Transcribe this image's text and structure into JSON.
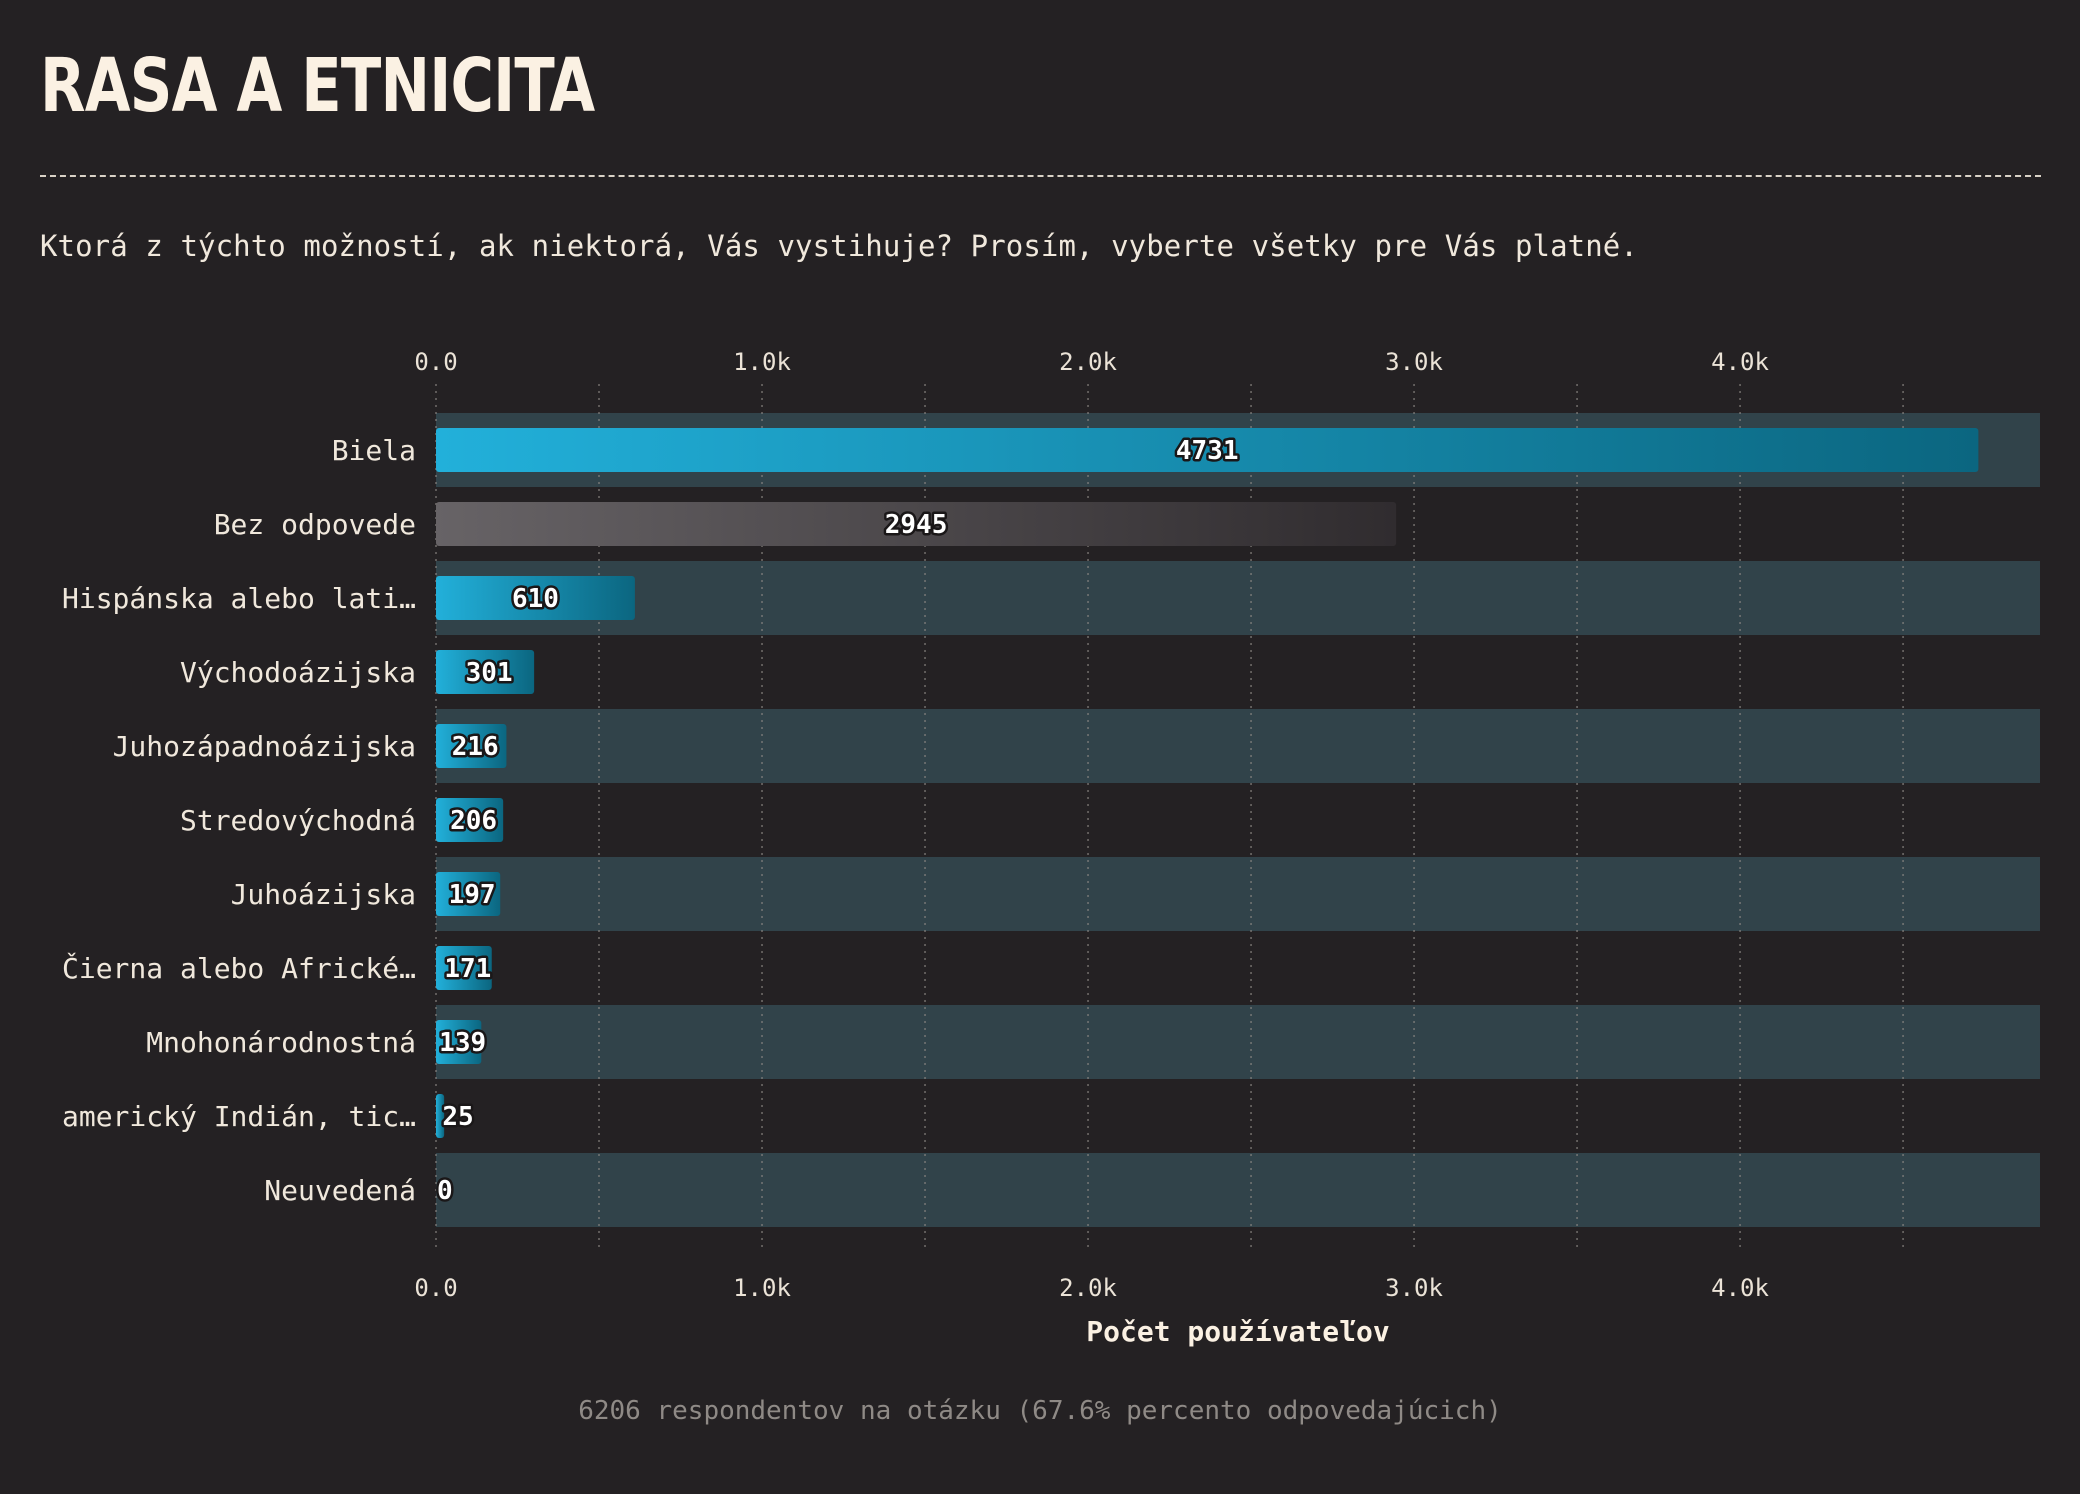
{
  "header": {
    "title": "RASA A ETNICITA",
    "question": "Ktorá z týchto možností, ak niektorá, Vás vystihuje? Prosím, vyberte všetky pre Vás platné."
  },
  "footer": {
    "note": "6206 respondentov na otázku (67.6% percento odpovedajúcich)"
  },
  "colors": {
    "background": "#242123",
    "row_band": "#31434a",
    "bar_blue_start": "#22b0da",
    "bar_blue_end": "#0b6680",
    "bar_gray_start": "#676366",
    "bar_gray_end": "#302c2f",
    "axis_text": "#ebe3d7"
  },
  "chart_data": {
    "type": "bar",
    "orientation": "horizontal",
    "categories": [
      "Biela",
      "Bez odpovede",
      "Hispánska alebo lati…",
      "Východoázijska",
      "Juhozápadnoázijska",
      "Stredovýchodná",
      "Juhoázijska",
      "Čierna alebo Africké…",
      "Mnohonárodnostná",
      "americký Indián, tic…",
      "Neuvedená"
    ],
    "values": [
      4731,
      2945,
      610,
      301,
      216,
      206,
      197,
      171,
      139,
      25,
      0
    ],
    "value_labels": [
      "4731",
      "2945",
      "610",
      "301",
      "216",
      "206",
      "197",
      "171",
      "139",
      "25",
      "0"
    ],
    "highlighted_gray": [
      "Bez odpovede"
    ],
    "xlabel": "Počet používateľov",
    "ylabel": "",
    "xlim": [
      0,
      4920
    ],
    "xticks": [
      0,
      1000,
      2000,
      3000,
      4000
    ],
    "xtick_labels": [
      "0.0",
      "1.0k",
      "2.0k",
      "3.0k",
      "4.0k"
    ],
    "minor_gridlines": [
      500,
      1500,
      2500,
      3500,
      4500
    ],
    "grid": true,
    "tick_labels_top_and_bottom": true,
    "alternating_row_bands": true,
    "legend": "none"
  }
}
